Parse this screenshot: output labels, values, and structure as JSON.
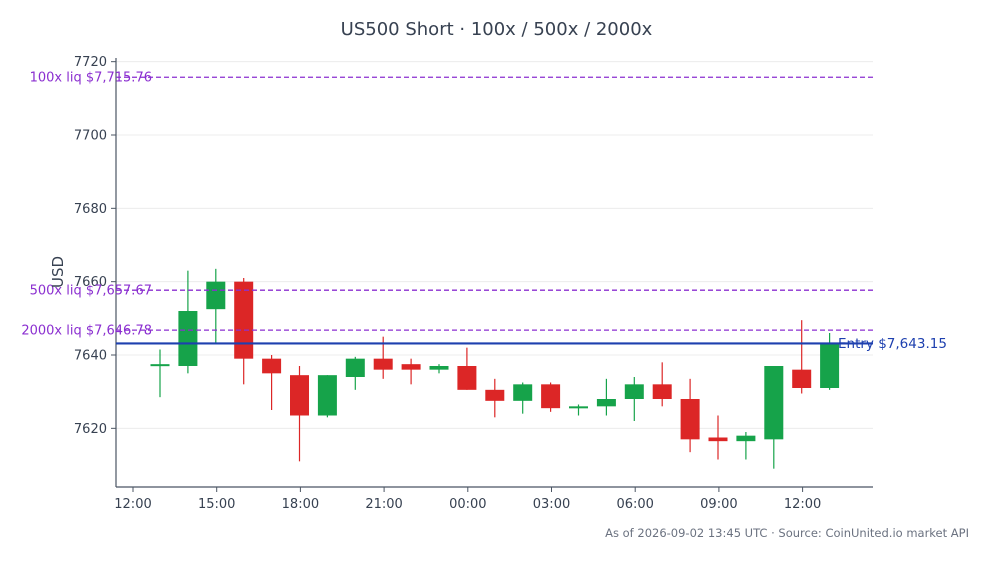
{
  "chart_data": {
    "type": "candlestick",
    "title": "US500 Short · 100x / 500x / 2000x",
    "ylabel": "USD",
    "xlabel": "",
    "ylim": [
      7604,
      7721
    ],
    "yticks": [
      7620,
      7640,
      7660,
      7680,
      7700,
      7720
    ],
    "xticks": [
      "12:00",
      "15:00",
      "18:00",
      "21:00",
      "00:00",
      "03:00",
      "06:00",
      "09:00",
      "12:00"
    ],
    "grid": "horizontal",
    "colors": {
      "up": "#16a34a",
      "down": "#dc2626",
      "entry": "#1e40af",
      "liq": "#8b2fd0"
    },
    "candles": [
      {
        "o": 7637.0,
        "h": 7641.5,
        "l": 7628.5,
        "c": 7637.5
      },
      {
        "o": 7637.0,
        "h": 7663.0,
        "l": 7635.0,
        "c": 7652.0
      },
      {
        "o": 7652.5,
        "h": 7663.5,
        "l": 7643.0,
        "c": 7660.0
      },
      {
        "o": 7660.0,
        "h": 7661.0,
        "l": 7632.0,
        "c": 7639.0
      },
      {
        "o": 7639.0,
        "h": 7640.0,
        "l": 7625.0,
        "c": 7635.0
      },
      {
        "o": 7634.5,
        "h": 7637.0,
        "l": 7611.0,
        "c": 7623.5
      },
      {
        "o": 7623.5,
        "h": 7634.5,
        "l": 7623.0,
        "c": 7634.5
      },
      {
        "o": 7634.0,
        "h": 7639.5,
        "l": 7630.5,
        "c": 7639.0
      },
      {
        "o": 7639.0,
        "h": 7645.0,
        "l": 7633.5,
        "c": 7636.0
      },
      {
        "o": 7637.5,
        "h": 7639.0,
        "l": 7632.0,
        "c": 7636.0
      },
      {
        "o": 7636.0,
        "h": 7637.5,
        "l": 7635.0,
        "c": 7637.0
      },
      {
        "o": 7637.0,
        "h": 7642.0,
        "l": 7630.5,
        "c": 7630.5
      },
      {
        "o": 7630.5,
        "h": 7633.5,
        "l": 7623.0,
        "c": 7627.5
      },
      {
        "o": 7627.5,
        "h": 7632.5,
        "l": 7624.0,
        "c": 7632.0
      },
      {
        "o": 7632.0,
        "h": 7632.5,
        "l": 7624.5,
        "c": 7625.5
      },
      {
        "o": 7625.5,
        "h": 7626.5,
        "l": 7623.5,
        "c": 7626.0
      },
      {
        "o": 7626.0,
        "h": 7633.5,
        "l": 7623.5,
        "c": 7628.0
      },
      {
        "o": 7628.0,
        "h": 7634.0,
        "l": 7622.0,
        "c": 7632.0
      },
      {
        "o": 7632.0,
        "h": 7638.0,
        "l": 7626.0,
        "c": 7628.0
      },
      {
        "o": 7628.0,
        "h": 7633.5,
        "l": 7613.5,
        "c": 7617.0
      },
      {
        "o": 7617.5,
        "h": 7623.5,
        "l": 7611.5,
        "c": 7616.5
      },
      {
        "o": 7616.5,
        "h": 7619.0,
        "l": 7611.5,
        "c": 7618.0
      },
      {
        "o": 7617.0,
        "h": 7637.0,
        "l": 7609.0,
        "c": 7637.0
      },
      {
        "o": 7636.0,
        "h": 7649.5,
        "l": 7629.5,
        "c": 7631.0
      },
      {
        "o": 7631.0,
        "h": 7646.0,
        "l": 7630.5,
        "c": 7643.0
      }
    ],
    "entry": {
      "value": 7643.15,
      "label": "Entry $7,643.15"
    },
    "liquidation_levels": [
      {
        "value": 7715.76,
        "label": "100x liq $7,715.76"
      },
      {
        "value": 7657.67,
        "label": "500x liq $7,657.67"
      },
      {
        "value": 7646.78,
        "label": "2000x liq $7,646.78"
      }
    ]
  },
  "footer": "As of 2026-09-02 13:45 UTC · Source: CoinUnited.io market API"
}
